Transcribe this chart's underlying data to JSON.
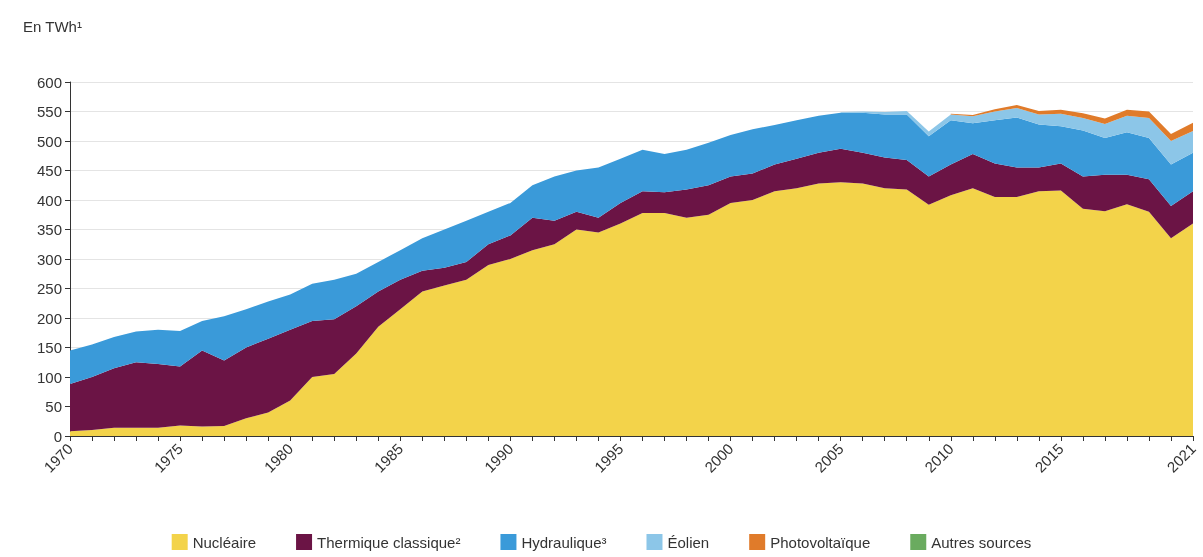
{
  "chart_data": {
    "type": "area",
    "title": "En TWh¹",
    "stacked": true,
    "grid": "y",
    "legend": "bottom",
    "marker": "none",
    "categories": [
      "1970",
      null,
      null,
      null,
      null,
      "1975",
      null,
      null,
      null,
      null,
      "1980",
      null,
      null,
      null,
      null,
      "1985",
      null,
      null,
      null,
      null,
      "1990",
      null,
      null,
      null,
      null,
      "1995",
      null,
      null,
      null,
      null,
      "2000",
      null,
      null,
      null,
      null,
      "2005",
      null,
      null,
      null,
      null,
      "2010",
      null,
      null,
      null,
      null,
      "2015",
      null,
      null,
      null,
      null,
      null,
      "2021"
    ],
    "ylim": [
      0,
      600
    ],
    "yticks": [
      0,
      50,
      100,
      150,
      200,
      250,
      300,
      350,
      400,
      450,
      500,
      550,
      600
    ],
    "series": [
      {
        "name": "Nucléaire",
        "color": "#f3d34a",
        "values": [
          8,
          10,
          14,
          14,
          14,
          18,
          16,
          17,
          30,
          40,
          60,
          100,
          105,
          140,
          185,
          215,
          245,
          255,
          265,
          290,
          300,
          315,
          325,
          350,
          345,
          360,
          378,
          378,
          370,
          375,
          395,
          400,
          415,
          420,
          428,
          430,
          428,
          420,
          418,
          392,
          408,
          420,
          405,
          405,
          415,
          416,
          385,
          381,
          393,
          380,
          335,
          360
        ]
      },
      {
        "name": "Thermique classique²",
        "color": "#6b1445",
        "values": [
          80,
          90,
          101,
          111,
          108,
          100,
          129,
          111,
          120,
          125,
          120,
          95,
          93,
          80,
          60,
          50,
          35,
          30,
          30,
          35,
          40,
          55,
          40,
          30,
          25,
          35,
          37,
          35,
          48,
          50,
          45,
          45,
          45,
          50,
          52,
          57,
          52,
          52,
          50,
          48,
          52,
          58,
          57,
          50,
          40,
          46,
          55,
          62,
          50,
          55,
          55,
          55
        ]
      },
      {
        "name": "Hydraulique³",
        "color": "#3a9ad9",
        "values": [
          57,
          55,
          53,
          52,
          58,
          60,
          50,
          75,
          65,
          63,
          60,
          63,
          67,
          55,
          50,
          50,
          55,
          65,
          70,
          55,
          55,
          55,
          75,
          70,
          85,
          75,
          70,
          65,
          67,
          72,
          70,
          75,
          67,
          65,
          63,
          61,
          68,
          73,
          77,
          68,
          75,
          52,
          73,
          85,
          73,
          63,
          78,
          62,
          72,
          70,
          70,
          65
        ]
      },
      {
        "name": "Éolien",
        "color": "#8cc6e8",
        "values": [
          null,
          null,
          null,
          null,
          null,
          null,
          null,
          null,
          null,
          null,
          null,
          null,
          null,
          null,
          null,
          null,
          null,
          null,
          null,
          null,
          null,
          null,
          null,
          null,
          null,
          null,
          null,
          null,
          null,
          null,
          null,
          null,
          null,
          null,
          null,
          1,
          2,
          4,
          6,
          8,
          10,
          12,
          15,
          16,
          17,
          21,
          21,
          24,
          28,
          34,
          40,
          37
        ]
      },
      {
        "name": "Photovoltaïque",
        "color": "#e07b2a",
        "values": [
          null,
          null,
          null,
          null,
          null,
          null,
          null,
          null,
          null,
          null,
          null,
          null,
          null,
          null,
          null,
          null,
          null,
          null,
          null,
          null,
          null,
          null,
          null,
          null,
          null,
          null,
          null,
          null,
          null,
          null,
          null,
          null,
          null,
          null,
          null,
          null,
          null,
          null,
          null,
          null,
          1,
          2,
          4,
          5,
          6,
          7,
          8,
          9,
          10,
          11,
          12,
          14
        ]
      },
      {
        "name": "Autres sources",
        "color": "#6aab5f",
        "values": [
          null,
          null,
          null,
          null,
          null,
          null,
          null,
          null,
          null,
          null,
          null,
          null,
          null,
          null,
          null,
          null,
          null,
          null,
          null,
          null,
          null,
          null,
          null,
          null,
          null,
          null,
          null,
          null,
          null,
          null,
          null,
          null,
          null,
          null,
          null,
          null,
          null,
          null,
          null,
          null,
          null,
          null,
          null,
          null,
          null,
          null,
          null,
          null,
          null,
          null,
          null,
          null
        ]
      }
    ]
  }
}
